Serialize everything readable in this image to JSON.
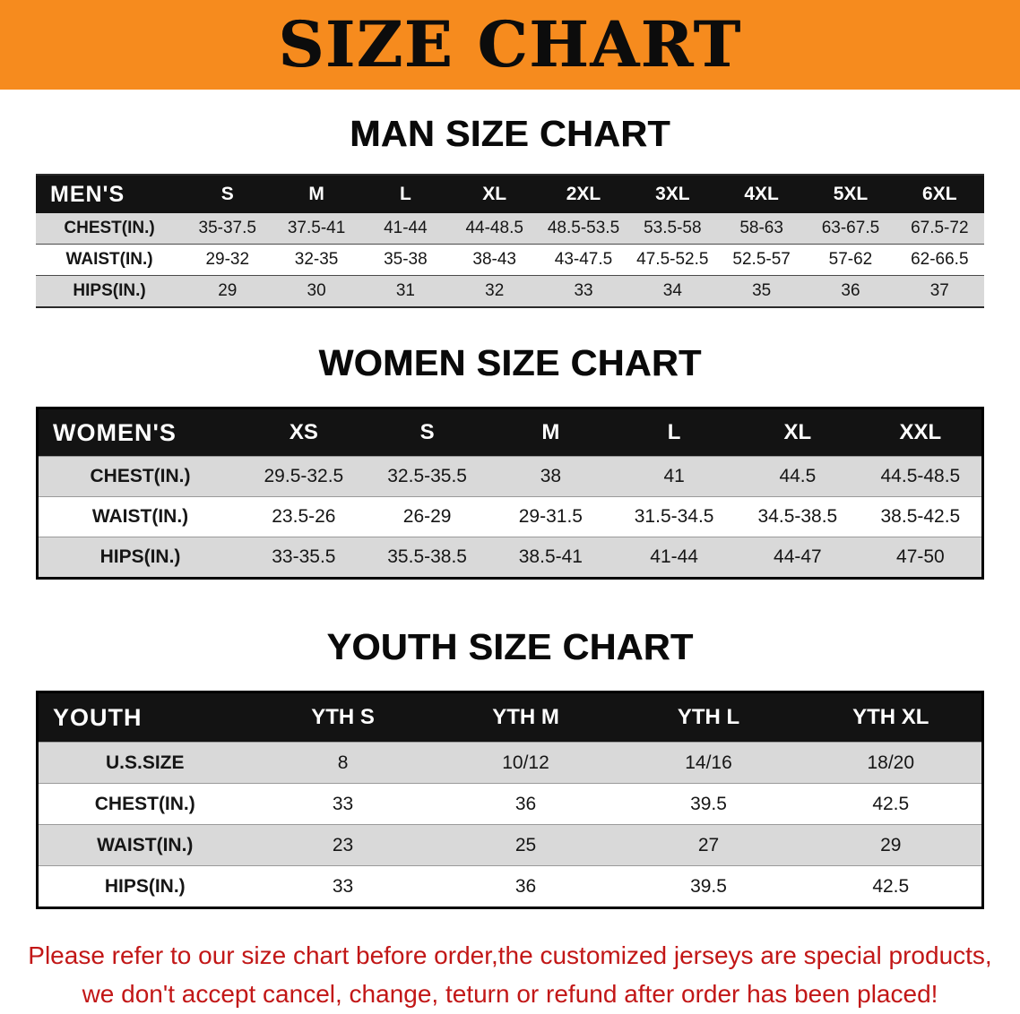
{
  "banner": {
    "title": "SIZE CHART",
    "bg_color": "#f68b1e",
    "title_color": "#0c0c0c"
  },
  "sections": [
    {
      "heading": "MAN SIZE CHART",
      "table": {
        "header": [
          "MEN'S",
          "S",
          "M",
          "L",
          "XL",
          "2XL",
          "3XL",
          "4XL",
          "5XL",
          "6XL"
        ],
        "rows": [
          {
            "label": "CHEST(IN.)",
            "values": [
              "35-37.5",
              "37.5-41",
              "41-44",
              "44-48.5",
              "48.5-53.5",
              "53.5-58",
              "58-63",
              "63-67.5",
              "67.5-72"
            ]
          },
          {
            "label": "WAIST(IN.)",
            "values": [
              "29-32",
              "32-35",
              "35-38",
              "38-43",
              "43-47.5",
              "47.5-52.5",
              "52.5-57",
              "57-62",
              "62-66.5"
            ]
          },
          {
            "label": "HIPS(IN.)",
            "values": [
              "29",
              "30",
              "31",
              "32",
              "33",
              "34",
              "35",
              "36",
              "37"
            ]
          }
        ]
      }
    },
    {
      "heading": "WOMEN SIZE CHART",
      "table": {
        "header": [
          "WOMEN'S",
          "XS",
          "S",
          "M",
          "L",
          "XL",
          "XXL"
        ],
        "rows": [
          {
            "label": "CHEST(IN.)",
            "values": [
              "29.5-32.5",
              "32.5-35.5",
              "38",
              "41",
              "44.5",
              "44.5-48.5"
            ]
          },
          {
            "label": "WAIST(IN.)",
            "values": [
              "23.5-26",
              "26-29",
              "29-31.5",
              "31.5-34.5",
              "34.5-38.5",
              "38.5-42.5"
            ]
          },
          {
            "label": "HIPS(IN.)",
            "values": [
              "33-35.5",
              "35.5-38.5",
              "38.5-41",
              "41-44",
              "44-47",
              "47-50"
            ]
          }
        ]
      }
    },
    {
      "heading": "YOUTH SIZE CHART",
      "table": {
        "header": [
          "YOUTH",
          "YTH S",
          "YTH M",
          "YTH L",
          "YTH XL"
        ],
        "rows": [
          {
            "label": "U.S.SIZE",
            "values": [
              "8",
              "10/12",
              "14/16",
              "18/20"
            ]
          },
          {
            "label": "CHEST(IN.)",
            "values": [
              "33",
              "36",
              "39.5",
              "42.5"
            ]
          },
          {
            "label": "WAIST(IN.)",
            "values": [
              "23",
              "25",
              "27",
              "29"
            ]
          },
          {
            "label": "HIPS(IN.)",
            "values": [
              "33",
              "36",
              "39.5",
              "42.5"
            ]
          }
        ]
      }
    }
  ],
  "footer": {
    "lines": [
      "Please refer to our size chart before order,the customized jerseys are special products,",
      "we don't accept cancel, change, teturn or refund after order has been placed!"
    ],
    "text_color": "#c21717"
  }
}
